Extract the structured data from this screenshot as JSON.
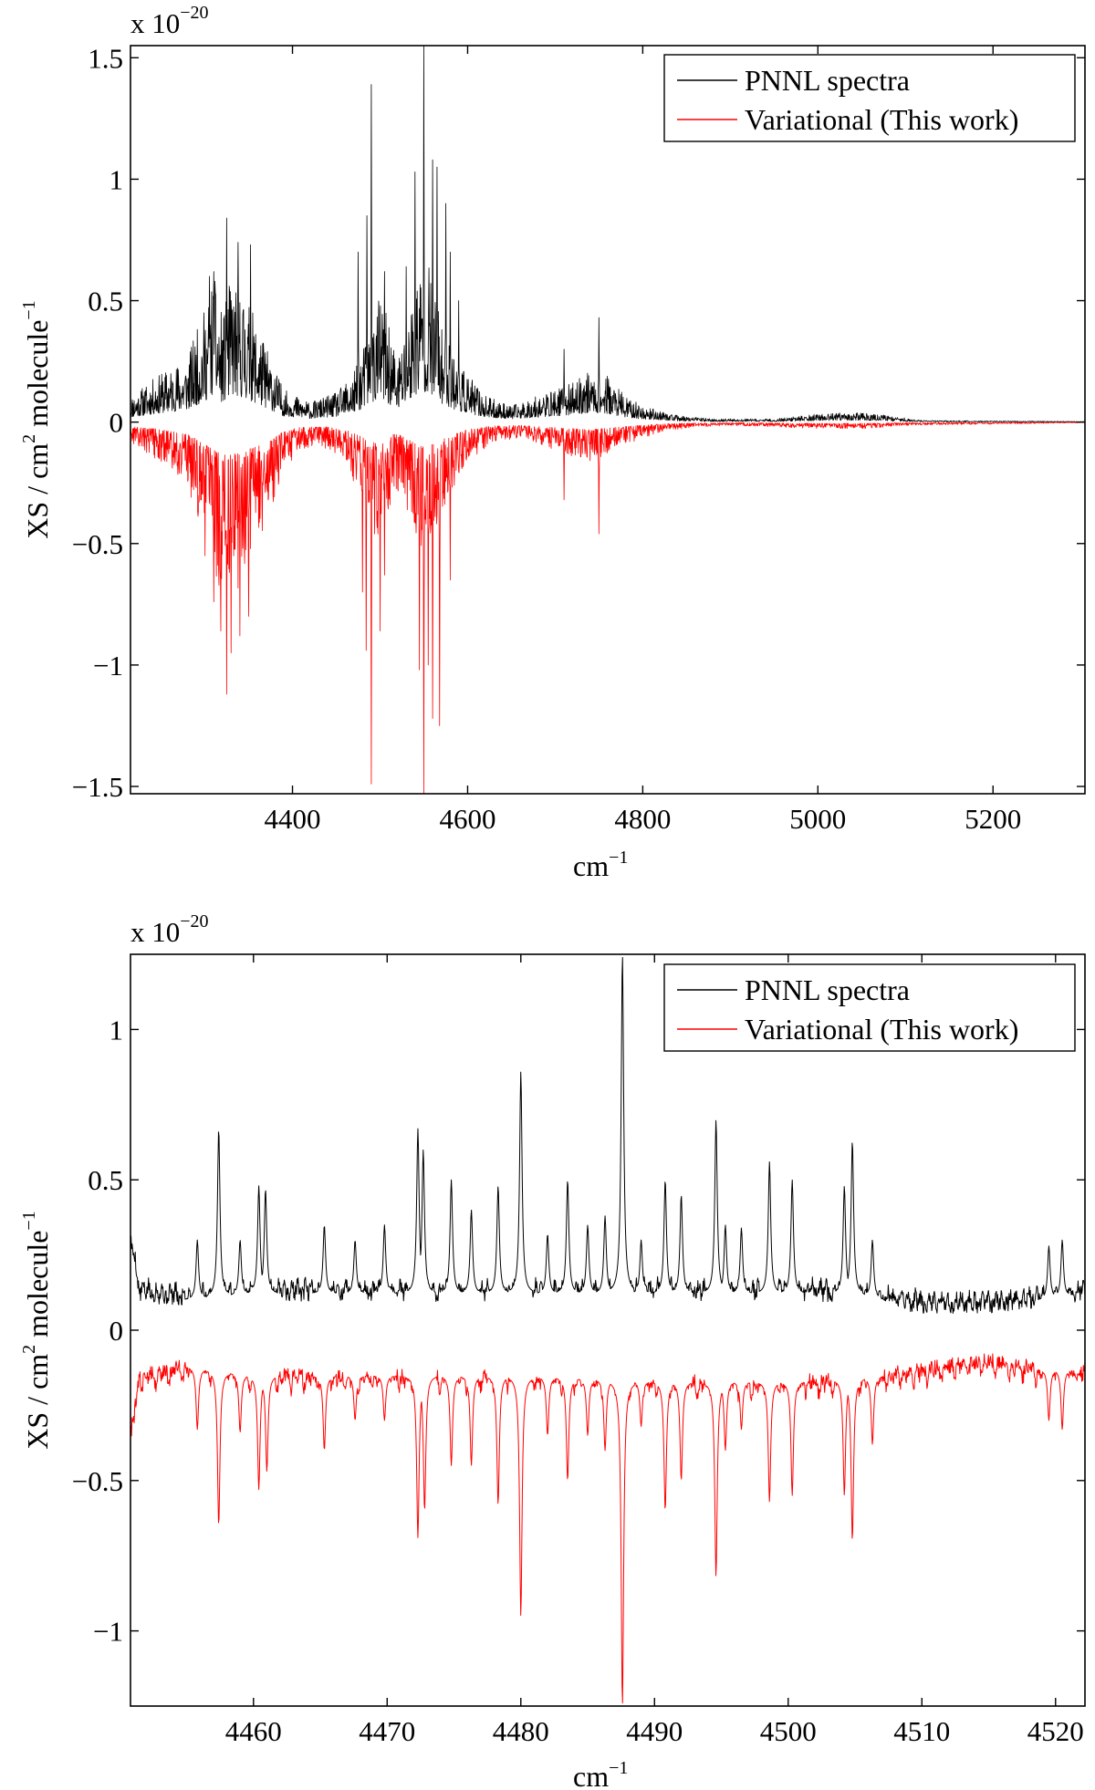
{
  "chart_data": [
    {
      "type": "line",
      "panel": "top",
      "title": "",
      "xlabel": "cm",
      "xlabel_sup": "−1",
      "ylabel_parts": [
        "XS / cm",
        "2",
        " molecule",
        "−1"
      ],
      "scale_prefix": "x 10",
      "scale_exponent": "−20",
      "xlim": [
        4215,
        5305
      ],
      "ylim": [
        -1.53,
        1.55
      ],
      "xticks": [
        4400,
        4600,
        4800,
        5000,
        5200
      ],
      "xtick_labels": [
        "4400",
        "4600",
        "4800",
        "5000",
        "5200"
      ],
      "yticks": [
        -1.5,
        -1,
        -0.5,
        0,
        0.5,
        1,
        1.5
      ],
      "ytick_labels": [
        "−1.5",
        "−1",
        "−0.5",
        "0",
        "0.5",
        "1",
        "1.5"
      ],
      "grid": false,
      "legend_position": "top-right",
      "series": [
        {
          "name": "PNNL spectra",
          "color": "#000000",
          "sign": 1,
          "envelope": [
            [
              4215,
              0.08
            ],
            [
              4250,
              0.15
            ],
            [
              4280,
              0.2
            ],
            [
              4300,
              0.35
            ],
            [
              4310,
              0.45
            ],
            [
              4320,
              0.32
            ],
            [
              4330,
              0.45
            ],
            [
              4345,
              0.4
            ],
            [
              4360,
              0.3
            ],
            [
              4375,
              0.2
            ],
            [
              4390,
              0.1
            ],
            [
              4420,
              0.06
            ],
            [
              4450,
              0.09
            ],
            [
              4470,
              0.15
            ],
            [
              4490,
              0.3
            ],
            [
              4500,
              0.4
            ],
            [
              4510,
              0.3
            ],
            [
              4520,
              0.2
            ],
            [
              4530,
              0.3
            ],
            [
              4545,
              0.5
            ],
            [
              4555,
              0.5
            ],
            [
              4570,
              0.3
            ],
            [
              4590,
              0.18
            ],
            [
              4620,
              0.08
            ],
            [
              4650,
              0.05
            ],
            [
              4680,
              0.08
            ],
            [
              4700,
              0.1
            ],
            [
              4720,
              0.12
            ],
            [
              4740,
              0.16
            ],
            [
              4760,
              0.14
            ],
            [
              4780,
              0.08
            ],
            [
              4800,
              0.05
            ],
            [
              4840,
              0.02
            ],
            [
              4880,
              0.01
            ],
            [
              4950,
              0.01
            ],
            [
              5000,
              0.025
            ],
            [
              5050,
              0.03
            ],
            [
              5080,
              0.02
            ],
            [
              5120,
              0.005
            ],
            [
              5305,
              0.002
            ]
          ],
          "peaks": [
            [
              4325,
              0.84
            ],
            [
              4338,
              0.74
            ],
            [
              4352,
              0.73
            ],
            [
              4305,
              0.6
            ],
            [
              4310,
              0.62
            ],
            [
              4490,
              1.39
            ],
            [
              4485,
              0.85
            ],
            [
              4475,
              0.7
            ],
            [
              4505,
              0.62
            ],
            [
              4540,
              1.03
            ],
            [
              4550,
              1.55
            ],
            [
              4560,
              1.08
            ],
            [
              4565,
              1.05
            ],
            [
              4575,
              0.9
            ],
            [
              4580,
              0.7
            ],
            [
              4590,
              0.5
            ],
            [
              4530,
              0.64
            ],
            [
              4710,
              0.3
            ],
            [
              4750,
              0.43
            ]
          ],
          "seed": 11
        },
        {
          "name": "Variational (This work)",
          "color": "#ff0000",
          "sign": -1,
          "envelope": [
            [
              4215,
              0.07
            ],
            [
              4250,
              0.12
            ],
            [
              4280,
              0.2
            ],
            [
              4300,
              0.35
            ],
            [
              4315,
              0.5
            ],
            [
              4325,
              0.55
            ],
            [
              4340,
              0.5
            ],
            [
              4355,
              0.42
            ],
            [
              4375,
              0.3
            ],
            [
              4390,
              0.15
            ],
            [
              4410,
              0.08
            ],
            [
              4440,
              0.08
            ],
            [
              4460,
              0.12
            ],
            [
              4480,
              0.25
            ],
            [
              4495,
              0.35
            ],
            [
              4505,
              0.35
            ],
            [
              4515,
              0.2
            ],
            [
              4525,
              0.22
            ],
            [
              4545,
              0.4
            ],
            [
              4555,
              0.4
            ],
            [
              4575,
              0.25
            ],
            [
              4600,
              0.12
            ],
            [
              4630,
              0.06
            ],
            [
              4660,
              0.05
            ],
            [
              4690,
              0.08
            ],
            [
              4710,
              0.1
            ],
            [
              4740,
              0.12
            ],
            [
              4760,
              0.1
            ],
            [
              4790,
              0.06
            ],
            [
              4820,
              0.03
            ],
            [
              4860,
              0.015
            ],
            [
              4900,
              0.01
            ],
            [
              5000,
              0.02
            ],
            [
              5060,
              0.02
            ],
            [
              5100,
              0.01
            ],
            [
              5305,
              0.002
            ]
          ],
          "peaks": [
            [
              4325,
              1.12
            ],
            [
              4318,
              0.86
            ],
            [
              4330,
              0.95
            ],
            [
              4340,
              0.88
            ],
            [
              4350,
              0.8
            ],
            [
              4310,
              0.74
            ],
            [
              4300,
              0.55
            ],
            [
              4490,
              1.49
            ],
            [
              4484,
              0.94
            ],
            [
              4480,
              0.7
            ],
            [
              4500,
              0.86
            ],
            [
              4505,
              0.63
            ],
            [
              4550,
              1.53
            ],
            [
              4545,
              1.02
            ],
            [
              4555,
              1.0
            ],
            [
              4560,
              1.22
            ],
            [
              4568,
              1.25
            ],
            [
              4580,
              0.65
            ],
            [
              4710,
              0.32
            ],
            [
              4750,
              0.46
            ]
          ],
          "seed": 23
        }
      ]
    },
    {
      "type": "line",
      "panel": "bottom",
      "title": "",
      "xlabel": "cm",
      "xlabel_sup": "−1",
      "ylabel_parts": [
        "XS / cm",
        "2",
        " molecule",
        "−1"
      ],
      "scale_prefix": "x 10",
      "scale_exponent": "−20",
      "xlim": [
        4450.8,
        4522.2
      ],
      "ylim": [
        -1.25,
        1.25
      ],
      "xticks": [
        4460,
        4470,
        4480,
        4490,
        4500,
        4510,
        4520
      ],
      "xtick_labels": [
        "4460",
        "4470",
        "4480",
        "4490",
        "4500",
        "4510",
        "4520"
      ],
      "yticks": [
        -1,
        -0.5,
        0,
        0.5,
        1
      ],
      "ytick_labels": [
        "−1",
        "−0.5",
        "0",
        "0.5",
        "1"
      ],
      "grid": false,
      "legend_position": "top-right",
      "series": [
        {
          "name": "PNNL spectra",
          "color": "#000000",
          "sign": 1,
          "baseline": [
            [
              4450.8,
              0.3
            ],
            [
              4451.5,
              0.12
            ],
            [
              4455,
              0.1
            ],
            [
              4460,
              0.12
            ],
            [
              4470,
              0.12
            ],
            [
              4480,
              0.12
            ],
            [
              4490,
              0.12
            ],
            [
              4500,
              0.12
            ],
            [
              4505,
              0.12
            ],
            [
              4507,
              0.1
            ],
            [
              4510,
              0.08
            ],
            [
              4515,
              0.08
            ],
            [
              4519,
              0.1
            ],
            [
              4522.2,
              0.12
            ]
          ],
          "peaks": [
            [
              4457.4,
              0.67
            ],
            [
              4460.4,
              0.48
            ],
            [
              4460.9,
              0.47
            ],
            [
              4465.3,
              0.35
            ],
            [
              4472.3,
              0.67
            ],
            [
              4472.7,
              0.6
            ],
            [
              4474.8,
              0.5
            ],
            [
              4476.3,
              0.4
            ],
            [
              4478.3,
              0.48
            ],
            [
              4480.0,
              0.86
            ],
            [
              4483.5,
              0.5
            ],
            [
              4486.3,
              0.38
            ],
            [
              4487.6,
              1.25
            ],
            [
              4490.8,
              0.5
            ],
            [
              4492.0,
              0.45
            ],
            [
              4494.6,
              0.7
            ],
            [
              4495.3,
              0.35
            ],
            [
              4498.6,
              0.56
            ],
            [
              4500.3,
              0.5
            ],
            [
              4504.8,
              0.63
            ],
            [
              4504.2,
              0.48
            ],
            [
              4506.3,
              0.3
            ],
            [
              4455.8,
              0.3
            ],
            [
              4459.0,
              0.3
            ],
            [
              4467.6,
              0.3
            ],
            [
              4469.8,
              0.35
            ],
            [
              4482.0,
              0.32
            ],
            [
              4485.0,
              0.35
            ],
            [
              4489.0,
              0.3
            ],
            [
              4496.5,
              0.34
            ],
            [
              4519.5,
              0.28
            ],
            [
              4520.5,
              0.3
            ]
          ],
          "width": 0.11,
          "seed": 5
        },
        {
          "name": "Variational (This work)",
          "color": "#ff0000",
          "sign": -1,
          "baseline": [
            [
              4450.8,
              0.35
            ],
            [
              4451.5,
              0.15
            ],
            [
              4455,
              0.12
            ],
            [
              4460,
              0.15
            ],
            [
              4470,
              0.15
            ],
            [
              4480,
              0.15
            ],
            [
              4490,
              0.17
            ],
            [
              4500,
              0.17
            ],
            [
              4505,
              0.16
            ],
            [
              4507,
              0.15
            ],
            [
              4510,
              0.13
            ],
            [
              4515,
              0.1
            ],
            [
              4519,
              0.13
            ],
            [
              4522.2,
              0.13
            ]
          ],
          "peaks": [
            [
              4457.4,
              0.65
            ],
            [
              4460.4,
              0.53
            ],
            [
              4461.0,
              0.47
            ],
            [
              4465.3,
              0.4
            ],
            [
              4472.3,
              0.69
            ],
            [
              4472.8,
              0.6
            ],
            [
              4474.8,
              0.45
            ],
            [
              4476.3,
              0.45
            ],
            [
              4478.3,
              0.58
            ],
            [
              4480.0,
              0.95
            ],
            [
              4483.5,
              0.5
            ],
            [
              4486.3,
              0.4
            ],
            [
              4487.6,
              1.25
            ],
            [
              4490.8,
              0.6
            ],
            [
              4492.0,
              0.5
            ],
            [
              4494.6,
              0.82
            ],
            [
              4495.3,
              0.4
            ],
            [
              4498.6,
              0.57
            ],
            [
              4500.3,
              0.55
            ],
            [
              4504.8,
              0.7
            ],
            [
              4504.2,
              0.55
            ],
            [
              4506.3,
              0.38
            ],
            [
              4455.8,
              0.33
            ],
            [
              4459.0,
              0.34
            ],
            [
              4467.6,
              0.3
            ],
            [
              4469.8,
              0.3
            ],
            [
              4482.0,
              0.35
            ],
            [
              4485.0,
              0.35
            ],
            [
              4489.0,
              0.32
            ],
            [
              4496.5,
              0.33
            ],
            [
              4519.5,
              0.3
            ],
            [
              4520.5,
              0.33
            ]
          ],
          "width": 0.11,
          "seed": 9
        }
      ]
    }
  ]
}
